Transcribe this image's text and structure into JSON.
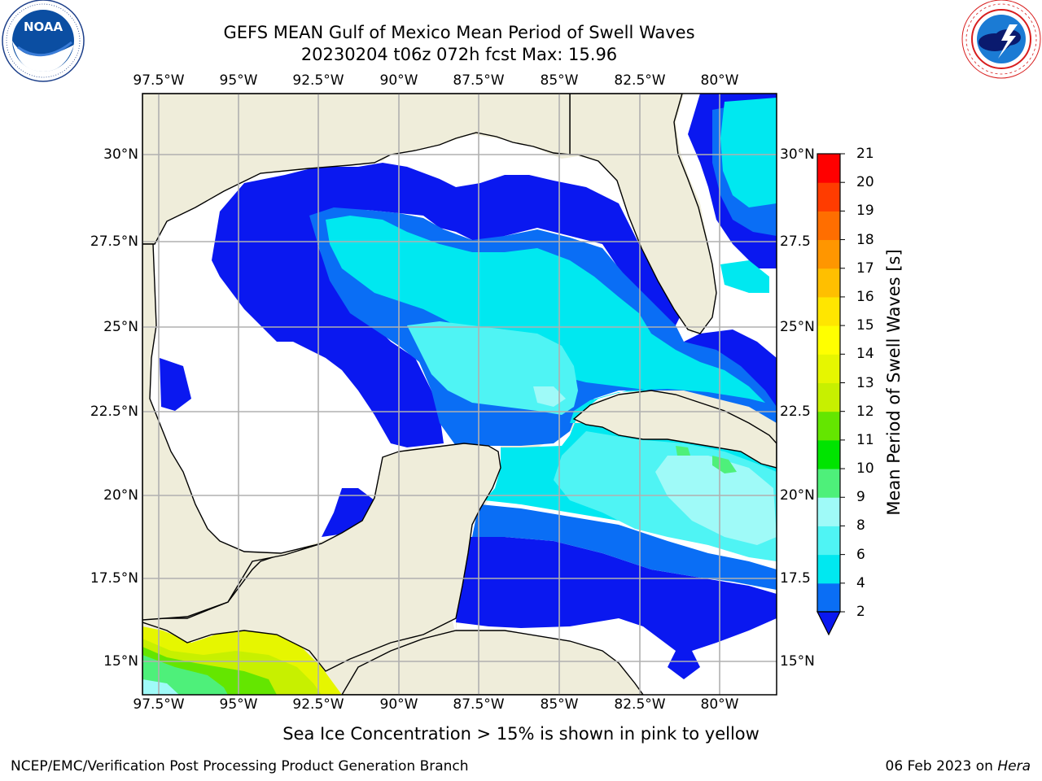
{
  "header": {
    "title_line1": "GEFS MEAN Gulf of Mexico Mean Period of Swell Waves",
    "title_line2": "20230204 t06z 072h fcst   Max: 15.96"
  },
  "logos": {
    "noaa_text": "NOAA",
    "noaa_ring": "NATIONAL OCEANIC AND ATMOSPHERIC ADMINISTRATION · U.S. DEPARTMENT OF COMMERCE",
    "nws_ring": "NATIONAL WEATHER SERVICE"
  },
  "map": {
    "lon_ticks": [
      "97.5°W",
      "95°W",
      "92.5°W",
      "90°W",
      "87.5°W",
      "85°W",
      "82.5°W",
      "80°W"
    ],
    "lat_ticks_left": [
      "30°N",
      "27.5°N",
      "25°N",
      "22.5°N",
      "20°N",
      "17.5°N",
      "15°N"
    ],
    "lat_ticks_right": [
      "30°N",
      "27.5",
      "25°N",
      "22.5",
      "20°N",
      "17.5",
      "15°N"
    ],
    "land_color": "#efedda",
    "ocean_blank_color": "#ffffff",
    "grid": true
  },
  "colorbar": {
    "label": "Mean Period of Swell Waves [s]",
    "ticks": [
      "2",
      "4",
      "6",
      "8",
      "9",
      "10",
      "11",
      "12",
      "13",
      "14",
      "15",
      "16",
      "17",
      "18",
      "19",
      "20",
      "21"
    ],
    "colors": [
      "#0a6ef5",
      "#00e8f0",
      "#4ff4f4",
      "#9ffaf8",
      "#4ef07a",
      "#00e400",
      "#64e600",
      "#c7f000",
      "#e6f600",
      "#ffff00",
      "#ffe600",
      "#ffbf00",
      "#ff9600",
      "#ff6e00",
      "#ff3c00",
      "#ff0000"
    ],
    "extend_color": "#0a18f0"
  },
  "chart_data": {
    "type": "heatmap",
    "title": "GEFS MEAN Gulf of Mexico Mean Period of Swell Waves",
    "subtitle": "20230204 t06z 072h fcst   Max: 15.96",
    "variable": "Mean Period of Swell Waves [s]",
    "max": 15.96,
    "lon_range": [
      -98.0,
      -78.5
    ],
    "lat_range": [
      14.0,
      32.0
    ],
    "levels": [
      2,
      4,
      6,
      8,
      9,
      10,
      11,
      12,
      13,
      14,
      15,
      16,
      17,
      18,
      19,
      20,
      21
    ]
  },
  "notes": {
    "sea_ice": "Sea Ice Concentration > 15% is shown in pink to yellow"
  },
  "footer": {
    "left": "NCEP/EMC/Verification Post Processing Product Generation Branch",
    "right_date": "06 Feb 2023 on ",
    "right_machine": "Hera"
  }
}
